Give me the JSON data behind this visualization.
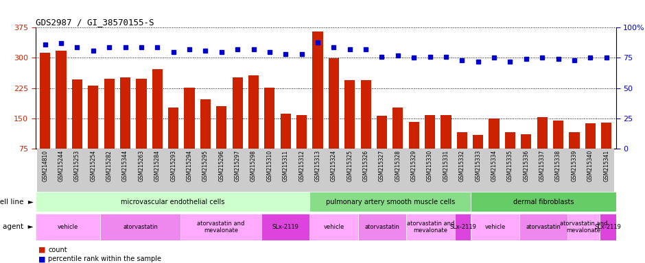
{
  "title": "GDS2987 / GI_38570155-S",
  "samples": [
    "GSM214810",
    "GSM215244",
    "GSM215253",
    "GSM215254",
    "GSM215282",
    "GSM215344",
    "GSM215263",
    "GSM215284",
    "GSM215293",
    "GSM215294",
    "GSM215295",
    "GSM215296",
    "GSM215297",
    "GSM215298",
    "GSM215310",
    "GSM215311",
    "GSM215312",
    "GSM215313",
    "GSM215324",
    "GSM215325",
    "GSM215326",
    "GSM215327",
    "GSM215328",
    "GSM215329",
    "GSM215330",
    "GSM215331",
    "GSM215332",
    "GSM215333",
    "GSM215334",
    "GSM215335",
    "GSM215336",
    "GSM215337",
    "GSM215338",
    "GSM215339",
    "GSM215340",
    "GSM215341"
  ],
  "bar_values": [
    313,
    318,
    247,
    231,
    249,
    251,
    249,
    272,
    176,
    226,
    198,
    181,
    251,
    256,
    226,
    161,
    159,
    366,
    299,
    244,
    244,
    156,
    176,
    141,
    158,
    159,
    116,
    109,
    149,
    116,
    111,
    153,
    144,
    116,
    138,
    139
  ],
  "dot_values": [
    86,
    87,
    84,
    81,
    84,
    84,
    84,
    84,
    80,
    82,
    81,
    80,
    82,
    82,
    80,
    78,
    78,
    88,
    84,
    82,
    82,
    76,
    77,
    75,
    76,
    76,
    73,
    72,
    75,
    72,
    74,
    75,
    74,
    73,
    75,
    75
  ],
  "ylim_left": [
    75,
    375
  ],
  "ylim_right": [
    0,
    100
  ],
  "yticks_left": [
    75,
    150,
    225,
    300,
    375
  ],
  "yticks_right": [
    0,
    25,
    50,
    75,
    100
  ],
  "bar_color": "#cc2200",
  "dot_color": "#0000cc",
  "cell_line_groups": [
    {
      "label": "microvascular endothelial cells",
      "start": 0,
      "end": 17,
      "color": "#ccffcc"
    },
    {
      "label": "pulmonary artery smooth muscle cells",
      "start": 17,
      "end": 27,
      "color": "#88dd88"
    },
    {
      "label": "dermal fibroblasts",
      "start": 27,
      "end": 36,
      "color": "#66cc66"
    }
  ],
  "agent_groups": [
    {
      "label": "vehicle",
      "start": 0,
      "end": 4,
      "color": "#ffaaff"
    },
    {
      "label": "atorvastatin",
      "start": 4,
      "end": 9,
      "color": "#ee88ee"
    },
    {
      "label": "atorvastatin and\nmevalonate",
      "start": 9,
      "end": 14,
      "color": "#ffaaff"
    },
    {
      "label": "SLx-2119",
      "start": 14,
      "end": 17,
      "color": "#dd44dd"
    },
    {
      "label": "vehicle",
      "start": 17,
      "end": 20,
      "color": "#ffaaff"
    },
    {
      "label": "atorvastatin",
      "start": 20,
      "end": 23,
      "color": "#ee88ee"
    },
    {
      "label": "atorvastatin and\nmevalonate",
      "start": 23,
      "end": 26,
      "color": "#ffaaff"
    },
    {
      "label": "SLx-2119",
      "start": 26,
      "end": 27,
      "color": "#dd44dd"
    },
    {
      "label": "vehicle",
      "start": 27,
      "end": 30,
      "color": "#ffaaff"
    },
    {
      "label": "atorvastatin",
      "start": 30,
      "end": 33,
      "color": "#ee88ee"
    },
    {
      "label": "atorvastatin and\nmevalonate",
      "start": 33,
      "end": 35,
      "color": "#ffaaff"
    },
    {
      "label": "SLx-2119",
      "start": 35,
      "end": 36,
      "color": "#dd44dd"
    }
  ],
  "row_label_cell_line": "cell line",
  "row_label_agent": "agent",
  "legend_count_color": "#cc2200",
  "legend_dot_color": "#0000cc",
  "bg_color": "#ffffff",
  "plot_bg_color": "#ffffff",
  "tick_bg_color": "#cccccc"
}
